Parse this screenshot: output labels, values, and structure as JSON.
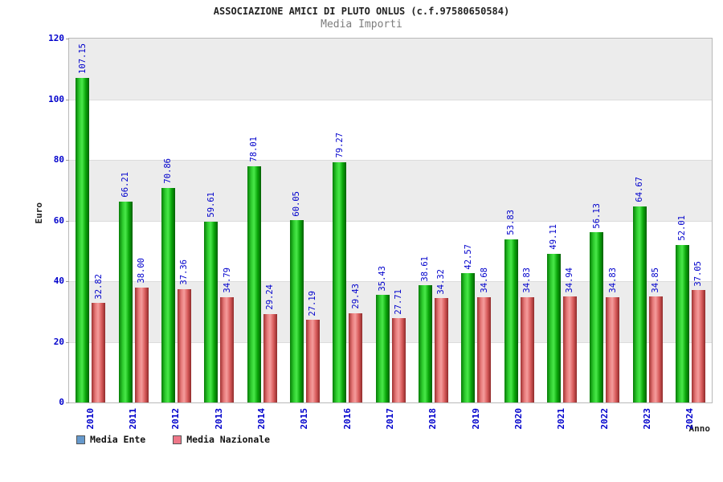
{
  "header": {
    "title": "ASSOCIAZIONE AMICI DI PLUTO ONLUS (c.f.97580650584)",
    "subtitle": "Media Importi"
  },
  "chart_data": {
    "type": "bar",
    "title": "ASSOCIAZIONE AMICI DI PLUTO ONLUS (c.f.97580650584)",
    "subtitle": "Media Importi",
    "categories": [
      "2010",
      "2011",
      "2012",
      "2013",
      "2014",
      "2015",
      "2016",
      "2017",
      "2018",
      "2019",
      "2020",
      "2021",
      "2022",
      "2023",
      "2024"
    ],
    "series": [
      {
        "name": "Media Ente",
        "bar_color": "#00cc00",
        "values": [
          107.15,
          66.21,
          70.86,
          59.61,
          78.01,
          60.05,
          79.27,
          35.43,
          38.61,
          42.57,
          53.83,
          49.11,
          56.13,
          64.67,
          52.01
        ]
      },
      {
        "name": "Media Nazionale",
        "bar_color": "#ee6666",
        "values": [
          32.82,
          38.0,
          37.36,
          34.79,
          29.24,
          27.19,
          29.43,
          27.71,
          34.32,
          34.68,
          34.83,
          34.94,
          34.83,
          34.85,
          37.05
        ]
      }
    ],
    "xlabel": "Anno",
    "ylabel": "Euro",
    "ylim": [
      0,
      120
    ],
    "ytick_step": 20,
    "yticks": [
      0,
      20,
      40,
      60,
      80,
      100,
      120
    ],
    "grid": true,
    "band_color": "#ececec",
    "value_label_color": "#0000cc",
    "tick_label_color": "#0000cc",
    "legend": {
      "position": "bottom-left",
      "entries": [
        {
          "label": "Media Ente",
          "swatch_color": "#6699cc"
        },
        {
          "label": "Media Nazionale",
          "swatch_color": "#ee7788"
        }
      ]
    }
  }
}
